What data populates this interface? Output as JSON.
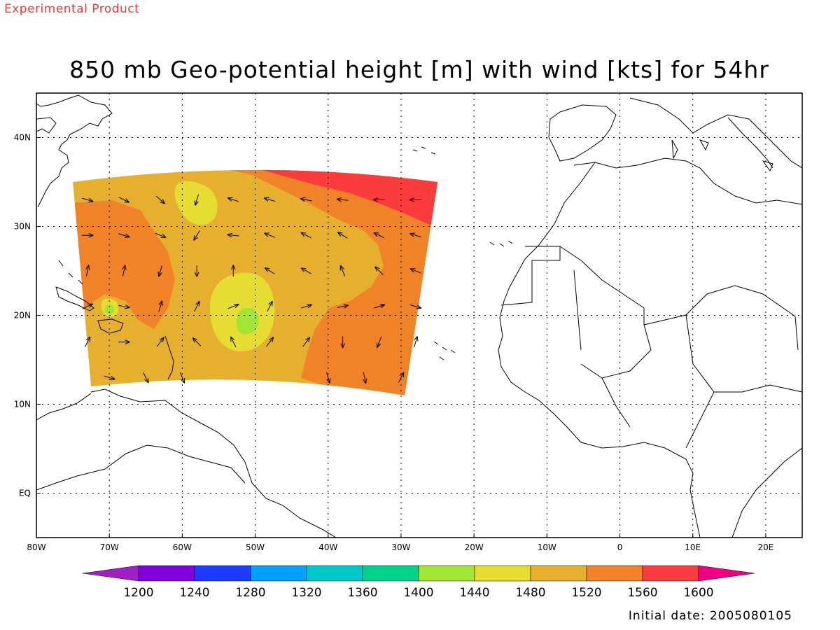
{
  "header": {
    "product_label": "Experimental Product",
    "title": "850 mb Geo-potential height [m] with wind [kts] for 54hr"
  },
  "footer": {
    "initial_date": "Initial date: 2005080105"
  },
  "map": {
    "lon_range": [
      -80,
      25
    ],
    "lat_range": [
      -5,
      45
    ],
    "lon_ticks": [
      {
        "value": -80,
        "label": "80W"
      },
      {
        "value": -70,
        "label": "70W"
      },
      {
        "value": -60,
        "label": "60W"
      },
      {
        "value": -50,
        "label": "50W"
      },
      {
        "value": -40,
        "label": "40W"
      },
      {
        "value": -30,
        "label": "30W"
      },
      {
        "value": -20,
        "label": "20W"
      },
      {
        "value": -10,
        "label": "10W"
      },
      {
        "value": 0,
        "label": "0"
      },
      {
        "value": 10,
        "label": "10E"
      },
      {
        "value": 20,
        "label": "20E"
      }
    ],
    "lat_ticks": [
      {
        "value": 40,
        "label": "40N"
      },
      {
        "value": 30,
        "label": "30N"
      },
      {
        "value": 20,
        "label": "20N"
      },
      {
        "value": 10,
        "label": "10N"
      },
      {
        "value": 0,
        "label": "EQ"
      }
    ],
    "grid": "dotted"
  },
  "colorbar": {
    "labels": [
      "1200",
      "1240",
      "1280",
      "1320",
      "1360",
      "1400",
      "1440",
      "1480",
      "1520",
      "1560",
      "1600"
    ],
    "colors": [
      "#a020c8",
      "#8200dc",
      "#1e3cff",
      "#00a0ff",
      "#00c8c8",
      "#00d28c",
      "#a0e632",
      "#e6dc32",
      "#e6af2d",
      "#f08228",
      "#fa3c3c",
      "#f00082"
    ]
  },
  "chart_data": {
    "type": "heatmap",
    "title": "850 mb Geo-potential height [m] with wind [kts] for 54hr",
    "variable": "geopotential height",
    "levels": [
      1200,
      1240,
      1280,
      1320,
      1360,
      1400,
      1440,
      1480,
      1520,
      1560,
      1600
    ],
    "domain_extent_lon": [
      -75,
      -25
    ],
    "domain_extent_lat": [
      11,
      36
    ],
    "regions": [
      {
        "level_band": "1480-1520",
        "description": "background"
      },
      {
        "level_band": "1520-1560",
        "description": "western orange band"
      },
      {
        "level_band": "1520-1560",
        "description": "eastern/southern orange region"
      },
      {
        "level_band": "1560-1600",
        "description": "northeast red region"
      },
      {
        "level_band": "1440-1480",
        "description": "central yellow blob near 51W 20N"
      },
      {
        "level_band": "1440-1480",
        "description": "northern yellow blob near 53W 32N"
      },
      {
        "level_band": "1400-1440",
        "description": "central green core near 51W 19.5N"
      }
    ],
    "wind_vectors": [
      {
        "lon": -73,
        "lat": 33,
        "u": 1,
        "v": -0.3
      },
      {
        "lon": -68,
        "lat": 33,
        "u": 1,
        "v": -0.5
      },
      {
        "lon": -63,
        "lat": 33,
        "u": 0.8,
        "v": -0.7
      },
      {
        "lon": -58,
        "lat": 33,
        "u": -0.3,
        "v": -1
      },
      {
        "lon": -53,
        "lat": 33,
        "u": -0.9,
        "v": 0.3
      },
      {
        "lon": -48,
        "lat": 33,
        "u": -1,
        "v": 0.3
      },
      {
        "lon": -43,
        "lat": 33,
        "u": -1,
        "v": 0.2
      },
      {
        "lon": -38,
        "lat": 33,
        "u": -1,
        "v": 0.1
      },
      {
        "lon": -33,
        "lat": 33,
        "u": -1,
        "v": 0
      },
      {
        "lon": -28,
        "lat": 33,
        "u": -1,
        "v": 0
      },
      {
        "lon": -73,
        "lat": 29,
        "u": 1,
        "v": 0
      },
      {
        "lon": -68,
        "lat": 29,
        "u": 1,
        "v": -0.3
      },
      {
        "lon": -63,
        "lat": 29,
        "u": 1,
        "v": -0.4
      },
      {
        "lon": -58,
        "lat": 29,
        "u": -0.5,
        "v": -0.8
      },
      {
        "lon": -53,
        "lat": 29,
        "u": -1,
        "v": 0.1
      },
      {
        "lon": -48,
        "lat": 29,
        "u": -1,
        "v": 0.4
      },
      {
        "lon": -43,
        "lat": 29,
        "u": -1,
        "v": 0.5
      },
      {
        "lon": -38,
        "lat": 29,
        "u": -1,
        "v": 0.6
      },
      {
        "lon": -33,
        "lat": 29,
        "u": -1,
        "v": 0.5
      },
      {
        "lon": -28,
        "lat": 29,
        "u": -1,
        "v": 0.3
      },
      {
        "lon": -73,
        "lat": 25,
        "u": 0.2,
        "v": 1
      },
      {
        "lon": -68,
        "lat": 25,
        "u": 0.2,
        "v": 1
      },
      {
        "lon": -63,
        "lat": 25,
        "u": -0.3,
        "v": -1
      },
      {
        "lon": -58,
        "lat": 25,
        "u": 0,
        "v": -1
      },
      {
        "lon": -53,
        "lat": 25,
        "u": 0,
        "v": 1
      },
      {
        "lon": -48,
        "lat": 25,
        "u": -0.8,
        "v": 0.5
      },
      {
        "lon": -43,
        "lat": 25,
        "u": -0.9,
        "v": 0.5
      },
      {
        "lon": -38,
        "lat": 25,
        "u": -0.4,
        "v": 1
      },
      {
        "lon": -33,
        "lat": 25,
        "u": -0.7,
        "v": 0.7
      },
      {
        "lon": -28,
        "lat": 25,
        "u": -1,
        "v": 0.4
      },
      {
        "lon": -73,
        "lat": 21,
        "u": 1,
        "v": 0.5
      },
      {
        "lon": -68,
        "lat": 21,
        "u": 1,
        "v": -0.2
      },
      {
        "lon": -63,
        "lat": 21,
        "u": 0.3,
        "v": 1
      },
      {
        "lon": -58,
        "lat": 21,
        "u": 0.5,
        "v": 1
      },
      {
        "lon": -53,
        "lat": 21,
        "u": 1,
        "v": 0.4
      },
      {
        "lon": -48,
        "lat": 21,
        "u": 0.5,
        "v": 1
      },
      {
        "lon": -43,
        "lat": 21,
        "u": 1,
        "v": 0.3
      },
      {
        "lon": -38,
        "lat": 21,
        "u": 1,
        "v": 0.2
      },
      {
        "lon": -33,
        "lat": 21,
        "u": 1,
        "v": 0.3
      },
      {
        "lon": -28,
        "lat": 21,
        "u": 1,
        "v": -0.3
      },
      {
        "lon": -73,
        "lat": 17,
        "u": 0.5,
        "v": 1
      },
      {
        "lon": -68,
        "lat": 17,
        "u": 1,
        "v": 0
      },
      {
        "lon": -63,
        "lat": 17,
        "u": 0.6,
        "v": 0.8
      },
      {
        "lon": -58,
        "lat": 17,
        "u": -0.7,
        "v": 0.7
      },
      {
        "lon": -53,
        "lat": 17,
        "u": -0.5,
        "v": 1
      },
      {
        "lon": -48,
        "lat": 17,
        "u": 0.6,
        "v": 0.8
      },
      {
        "lon": -43,
        "lat": 17,
        "u": 0.6,
        "v": 0.8
      },
      {
        "lon": -38,
        "lat": 17,
        "u": 0,
        "v": -1
      },
      {
        "lon": -33,
        "lat": 17,
        "u": -0.4,
        "v": -1
      },
      {
        "lon": -28,
        "lat": 17,
        "u": 0.3,
        "v": 1
      },
      {
        "lon": -70,
        "lat": 13,
        "u": 1,
        "v": -0.3
      },
      {
        "lon": -65,
        "lat": 13,
        "u": 0.5,
        "v": -1
      },
      {
        "lon": -60,
        "lat": 13,
        "u": 0.4,
        "v": -1
      },
      {
        "lon": -40,
        "lat": 13,
        "u": 0.3,
        "v": -1
      },
      {
        "lon": -35,
        "lat": 13,
        "u": 0.2,
        "v": -1
      },
      {
        "lon": -30,
        "lat": 13,
        "u": 0.5,
        "v": 1
      }
    ]
  }
}
